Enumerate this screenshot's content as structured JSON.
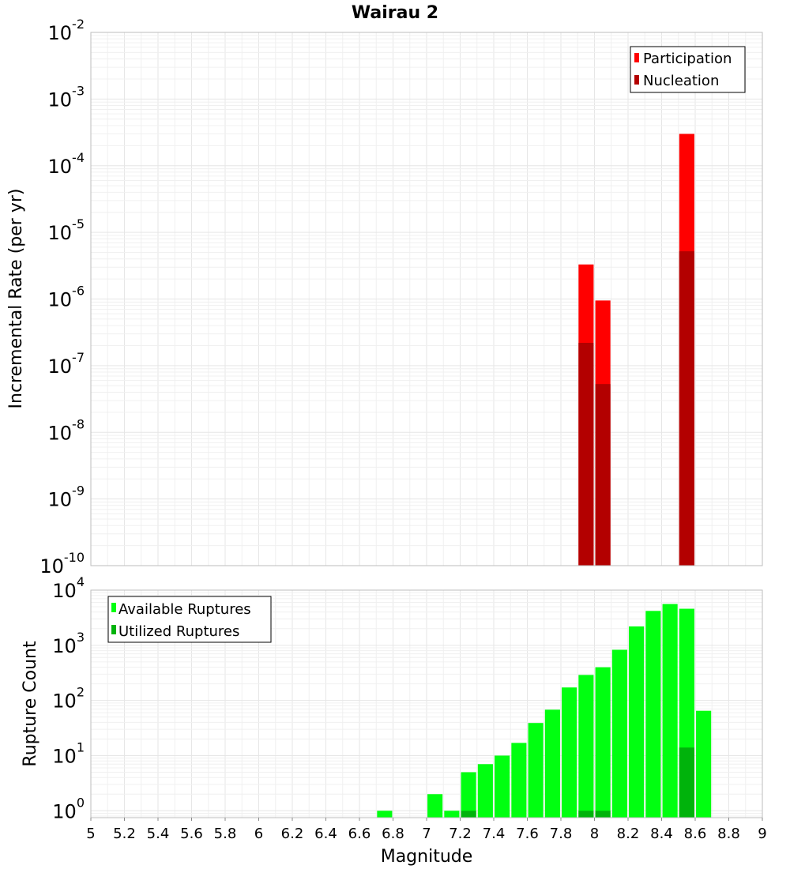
{
  "chart_data": [
    {
      "type": "bar",
      "title": "Wairau 2",
      "ylabel": "Incremental Rate (per yr)",
      "xlabel": "",
      "y_scale": "log",
      "ylim": [
        1e-10,
        0.01
      ],
      "xlim": [
        5,
        9
      ],
      "bar_width": 0.09,
      "y_tick_exponents": [
        -10,
        -9,
        -8,
        -7,
        -6,
        -5,
        -4,
        -3,
        -2
      ],
      "legend_position": "top-right",
      "grid": true,
      "series": [
        {
          "name": "Participation",
          "color": "#ff0000",
          "points": [
            {
              "x": 7.95,
              "y": 3.3e-06
            },
            {
              "x": 8.05,
              "y": 9.5e-07
            },
            {
              "x": 8.55,
              "y": 0.0003
            }
          ]
        },
        {
          "name": "Nucleation",
          "color": "#b30000",
          "points": [
            {
              "x": 7.95,
              "y": 2.2e-07
            },
            {
              "x": 8.05,
              "y": 5.3e-08
            },
            {
              "x": 8.55,
              "y": 5.2e-06
            }
          ]
        }
      ]
    },
    {
      "type": "bar",
      "title": "",
      "ylabel": "Rupture Count",
      "xlabel": "Magnitude",
      "y_scale": "log",
      "ylim": [
        0.75,
        10000
      ],
      "xlim": [
        5,
        9
      ],
      "bar_width": 0.09,
      "y_tick_exponents": [
        0,
        1,
        2,
        3,
        4
      ],
      "x_ticks": [
        "5",
        "5.2",
        "5.4",
        "5.6",
        "5.8",
        "6",
        "6.2",
        "6.4",
        "6.6",
        "6.8",
        "7",
        "7.2",
        "7.4",
        "7.6",
        "7.8",
        "8",
        "8.2",
        "8.4",
        "8.6",
        "8.8",
        "9"
      ],
      "legend_position": "top-left",
      "grid": true,
      "series": [
        {
          "name": "Available Ruptures",
          "color": "#00ff10",
          "points": [
            {
              "x": 6.75,
              "y": 1
            },
            {
              "x": 7.05,
              "y": 2
            },
            {
              "x": 7.15,
              "y": 1
            },
            {
              "x": 7.25,
              "y": 5
            },
            {
              "x": 7.35,
              "y": 7
            },
            {
              "x": 7.45,
              "y": 10
            },
            {
              "x": 7.55,
              "y": 17
            },
            {
              "x": 7.65,
              "y": 39
            },
            {
              "x": 7.75,
              "y": 68
            },
            {
              "x": 7.85,
              "y": 172
            },
            {
              "x": 7.95,
              "y": 290
            },
            {
              "x": 8.05,
              "y": 400
            },
            {
              "x": 8.15,
              "y": 830
            },
            {
              "x": 8.25,
              "y": 2200
            },
            {
              "x": 8.35,
              "y": 4200
            },
            {
              "x": 8.45,
              "y": 5600
            },
            {
              "x": 8.55,
              "y": 4600
            },
            {
              "x": 8.65,
              "y": 65
            }
          ]
        },
        {
          "name": "Utilized Ruptures",
          "color": "#00b30b",
          "points": [
            {
              "x": 7.25,
              "y": 1
            },
            {
              "x": 7.95,
              "y": 1
            },
            {
              "x": 8.05,
              "y": 1
            },
            {
              "x": 8.55,
              "y": 14
            }
          ]
        }
      ]
    }
  ]
}
